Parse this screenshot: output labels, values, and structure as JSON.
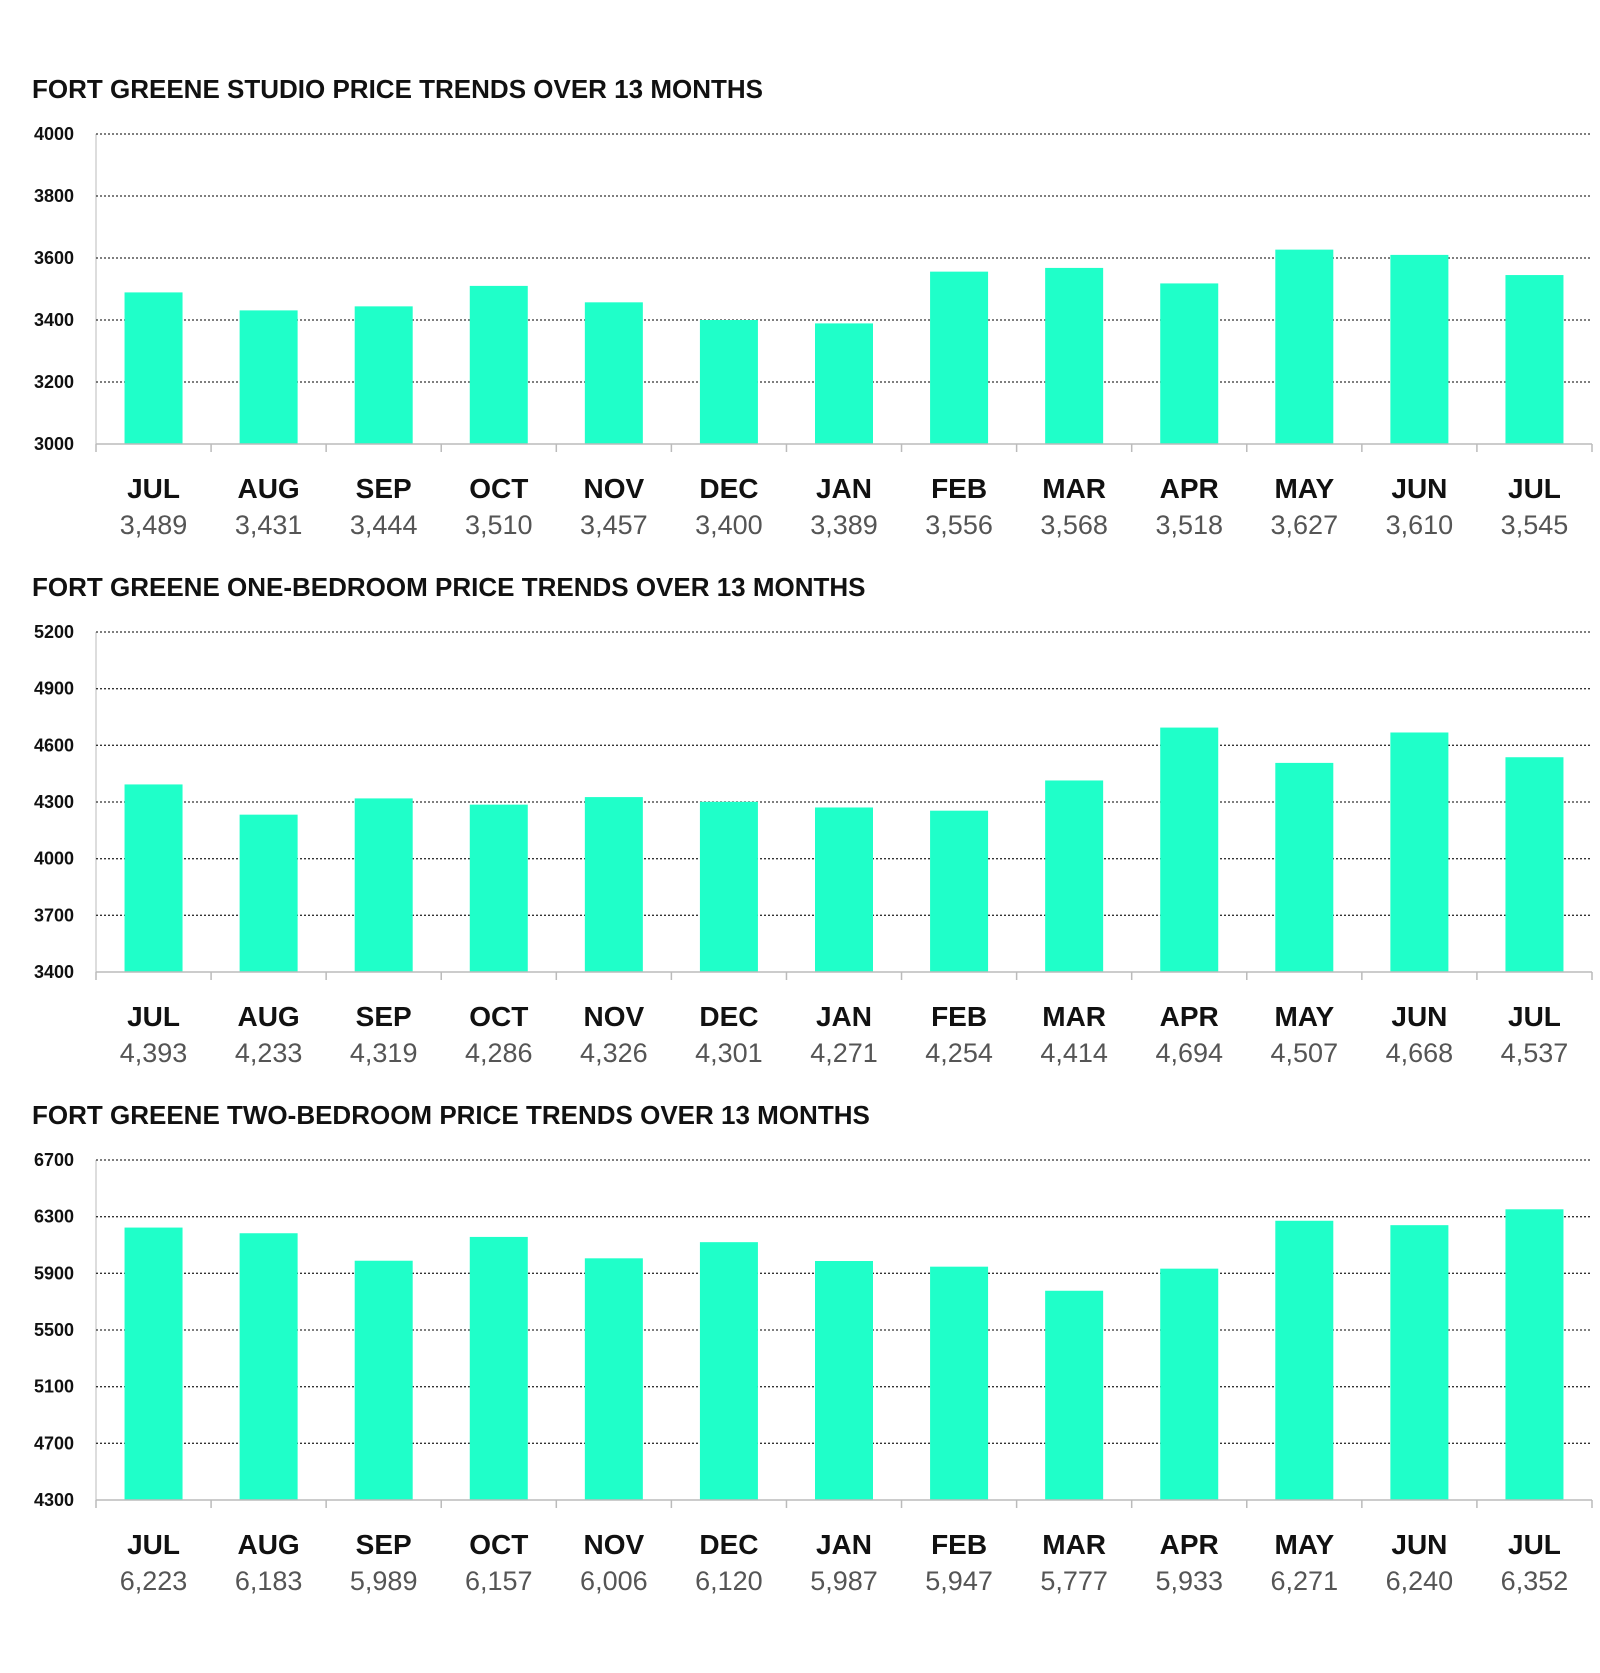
{
  "colors": {
    "bar": "#1fffc9",
    "grid": "#333333",
    "axis": "#bbbbbb",
    "title": "#111111",
    "value_text": "#555555"
  },
  "chart_data": [
    {
      "type": "bar",
      "title": "FORT GREENE STUDIO PRICE TRENDS OVER 13 MONTHS",
      "xlabel": "",
      "ylabel": "",
      "ylim": [
        3000,
        4000
      ],
      "yticks": [
        "4000",
        "3800",
        "3600",
        "3400",
        "3200",
        "3000"
      ],
      "grid": true,
      "categories": [
        "JUL",
        "AUG",
        "SEP",
        "OCT",
        "NOV",
        "DEC",
        "JAN",
        "FEB",
        "MAR",
        "APR",
        "MAY",
        "JUN",
        "JUL"
      ],
      "values": [
        3489,
        3431,
        3444,
        3510,
        3457,
        3400,
        3389,
        3556,
        3568,
        3518,
        3627,
        3610,
        3545
      ],
      "value_labels": [
        "3,489",
        "3,431",
        "3,444",
        "3,510",
        "3,457",
        "3,400",
        "3,389",
        "3,556",
        "3,568",
        "3,518",
        "3,627",
        "3,610",
        "3,545"
      ]
    },
    {
      "type": "bar",
      "title": "FORT GREENE ONE-BEDROOM PRICE TRENDS OVER 13 MONTHS",
      "xlabel": "",
      "ylabel": "",
      "ylim": [
        3400,
        5200
      ],
      "yticks": [
        "5200",
        "4900",
        "4600",
        "4300",
        "4000",
        "3700",
        "3400"
      ],
      "grid": true,
      "categories": [
        "JUL",
        "AUG",
        "SEP",
        "OCT",
        "NOV",
        "DEC",
        "JAN",
        "FEB",
        "MAR",
        "APR",
        "MAY",
        "JUN",
        "JUL"
      ],
      "values": [
        4393,
        4233,
        4319,
        4286,
        4326,
        4301,
        4271,
        4254,
        4414,
        4694,
        4507,
        4668,
        4537
      ],
      "value_labels": [
        "4,393",
        "4,233",
        "4,319",
        "4,286",
        "4,326",
        "4,301",
        "4,271",
        "4,254",
        "4,414",
        "4,694",
        "4,507",
        "4,668",
        "4,537"
      ]
    },
    {
      "type": "bar",
      "title": "FORT GREENE TWO-BEDROOM PRICE TRENDS OVER 13 MONTHS",
      "xlabel": "",
      "ylabel": "",
      "ylim": [
        4300,
        6700
      ],
      "yticks": [
        "6700",
        "6300",
        "5900",
        "5500",
        "5100",
        "4700",
        "4300"
      ],
      "grid": true,
      "categories": [
        "JUL",
        "AUG",
        "SEP",
        "OCT",
        "NOV",
        "DEC",
        "JAN",
        "FEB",
        "MAR",
        "APR",
        "MAY",
        "JUN",
        "JUL"
      ],
      "values": [
        6223,
        6183,
        5989,
        6157,
        6006,
        6120,
        5987,
        5947,
        5777,
        5933,
        6271,
        6240,
        6352
      ],
      "value_labels": [
        "6,223",
        "6,183",
        "5,989",
        "6,157",
        "6,006",
        "6,120",
        "5,987",
        "5,947",
        "5,777",
        "5,933",
        "6,271",
        "6,240",
        "6,352"
      ]
    }
  ]
}
